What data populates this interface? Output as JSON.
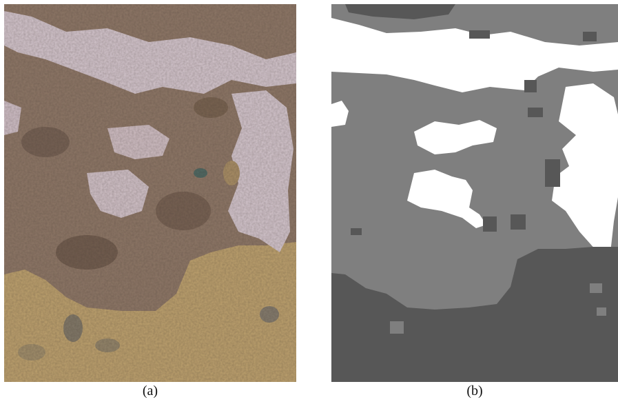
{
  "panels": [
    {
      "caption": "(a)",
      "kind": "aerial-terrain-texture",
      "colors": {
        "soil": "#8a7464",
        "lichen": "#cdbfc6",
        "grass": "#b79c6b",
        "dark_patch": "#6e5a4c",
        "shadow": "#5d4b3f"
      }
    },
    {
      "caption": "(b)",
      "kind": "segmentation-map",
      "colors": {
        "mid_gray": "#7f7f7f",
        "white": "#ffffff",
        "dark_gray": "#575757"
      }
    }
  ]
}
